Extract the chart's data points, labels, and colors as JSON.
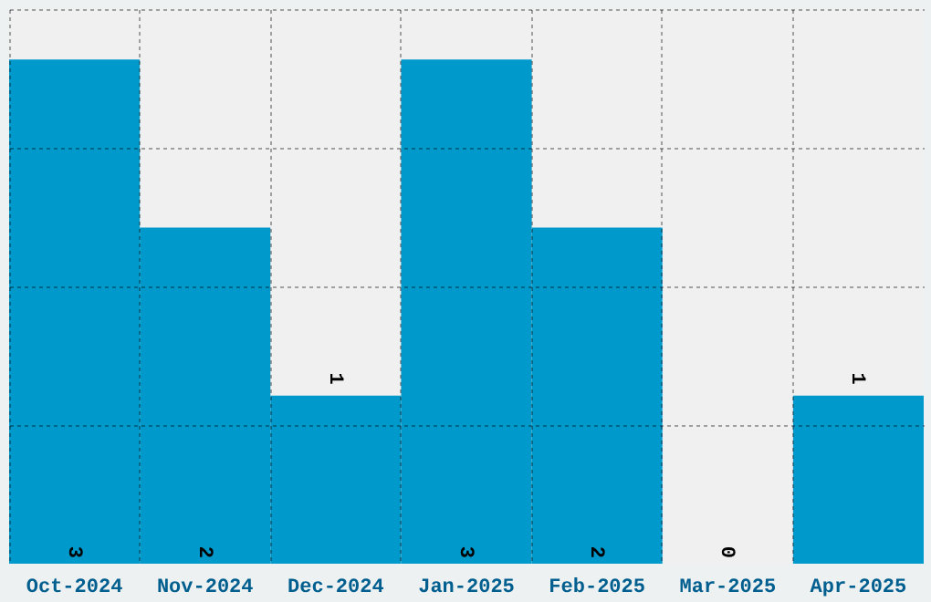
{
  "chart_data": {
    "type": "bar",
    "categories": [
      "Oct-2024",
      "Nov-2024",
      "Dec-2024",
      "Jan-2025",
      "Feb-2025",
      "Mar-2025",
      "Apr-2025"
    ],
    "values": [
      3,
      2,
      1,
      3,
      2,
      0,
      1
    ],
    "color": "#0099cc",
    "ylim": [
      0,
      3.3
    ],
    "yticks": [
      {
        "value": 0.825,
        "label": null
      },
      {
        "value": 1.65,
        "label": null
      },
      {
        "value": 2.475,
        "label": null
      },
      {
        "value": 3.3,
        "label": null
      }
    ],
    "grid": true,
    "data_labels": true,
    "tick_labels": "x"
  }
}
